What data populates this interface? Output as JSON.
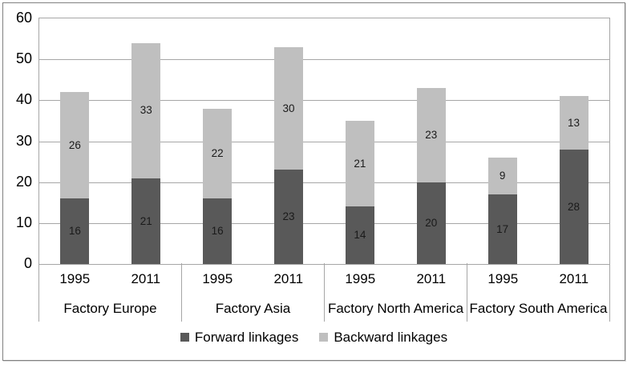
{
  "chart_data": {
    "type": "bar",
    "stacked": true,
    "title": "",
    "xlabel": "",
    "ylabel": "",
    "ylim": [
      0,
      60
    ],
    "yticks": [
      0,
      10,
      20,
      30,
      40,
      50,
      60
    ],
    "grid": true,
    "legend_position": "bottom",
    "groups": [
      "Factory Europe",
      "Factory Asia",
      "Factory North America",
      "Factory South America"
    ],
    "years_per_group": [
      "1995",
      "2011"
    ],
    "categories": [
      "1995",
      "2011",
      "1995",
      "2011",
      "1995",
      "2011",
      "1995",
      "2011"
    ],
    "series": [
      {
        "name": "Forward linkages",
        "color": "#595959",
        "values": [
          16,
          21,
          16,
          23,
          14,
          20,
          17,
          28
        ]
      },
      {
        "name": "Backward linkages",
        "color": "#bfbfbf",
        "values": [
          26,
          33,
          22,
          30,
          21,
          23,
          9,
          13
        ]
      }
    ],
    "bar_value_labels_shown": true
  },
  "colors": {
    "gridline": "#a6a6a6",
    "frame_border": "#808080",
    "background": "#ffffff",
    "label_text": "#1a1a1a"
  }
}
